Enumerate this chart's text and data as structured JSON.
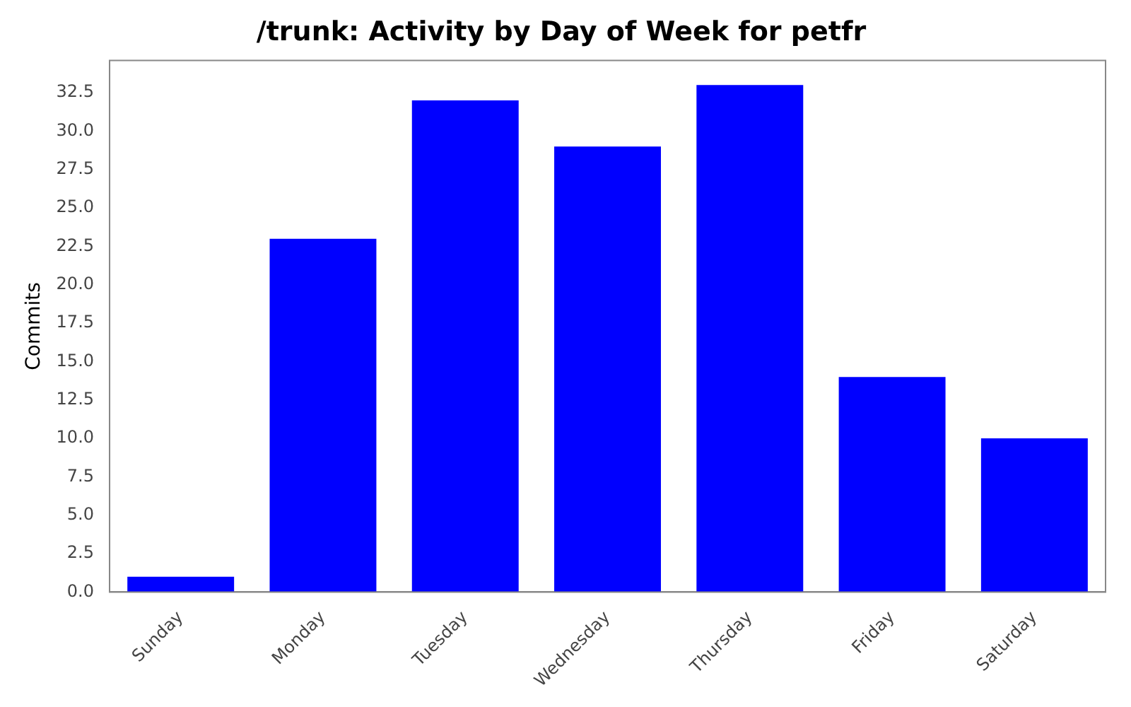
{
  "chart_data": {
    "type": "bar",
    "title": "/trunk: Activity by Day of Week for petfr",
    "ylabel": "Commits",
    "categories": [
      "Sunday",
      "Monday",
      "Tuesday",
      "Wednesday",
      "Thursday",
      "Friday",
      "Saturday"
    ],
    "values": [
      1,
      23,
      32,
      29,
      33,
      14,
      10
    ],
    "color": "#0000ff",
    "ylim": [
      0,
      34.6
    ],
    "yticks": [
      {
        "value": 0,
        "label": "0.0"
      },
      {
        "value": 2.5,
        "label": "2.5"
      },
      {
        "value": 5,
        "label": "5.0"
      },
      {
        "value": 7.5,
        "label": "7.5"
      },
      {
        "value": 10,
        "label": "10.0"
      },
      {
        "value": 12.5,
        "label": "12.5"
      },
      {
        "value": 15,
        "label": "15.0"
      },
      {
        "value": 17.5,
        "label": "17.5"
      },
      {
        "value": 20,
        "label": "20.0"
      },
      {
        "value": 22.5,
        "label": "22.5"
      },
      {
        "value": 25,
        "label": "25.0"
      },
      {
        "value": 27.5,
        "label": "27.5"
      },
      {
        "value": 30,
        "label": "30.0"
      },
      {
        "value": 32.5,
        "label": "32.5"
      }
    ],
    "grid": false,
    "legend": false
  }
}
